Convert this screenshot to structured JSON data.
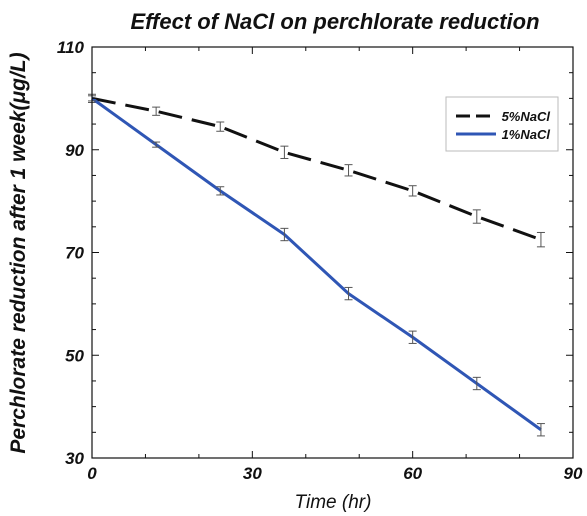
{
  "chart_data": {
    "type": "line",
    "title": "Effect of NaCl on perchlorate reduction",
    "xlabel": "Time (hr)",
    "ylabel": "Perchlorate reduction after 1 week(μg/L)",
    "xlim": [
      0,
      90
    ],
    "ylim": [
      30,
      110
    ],
    "xticks": [
      "0",
      "30",
      "60",
      "90"
    ],
    "yticks": [
      "30",
      "50",
      "70",
      "90",
      "110"
    ],
    "grid": false,
    "legend_position": "top-right",
    "series": [
      {
        "name": "5%NaCl",
        "color": "#111111",
        "line_style": "dashed",
        "x": [
          0,
          12,
          24,
          36,
          48,
          60,
          72,
          84
        ],
        "y": [
          100,
          97.5,
          94.5,
          89.5,
          86,
          82,
          77,
          72.5
        ],
        "error": [
          0.8,
          0.8,
          0.9,
          1.2,
          1.1,
          1.0,
          1.3,
          1.4
        ]
      },
      {
        "name": "1%NaCl",
        "color": "#2f56b5",
        "line_style": "solid",
        "x": [
          0,
          12,
          24,
          36,
          48,
          60,
          72,
          84
        ],
        "y": [
          100,
          91,
          82,
          73.5,
          62,
          53.5,
          44.5,
          35.5
        ],
        "error": [
          0.5,
          0.5,
          0.8,
          1.2,
          1.2,
          1.2,
          1.2,
          1.2
        ]
      }
    ]
  }
}
